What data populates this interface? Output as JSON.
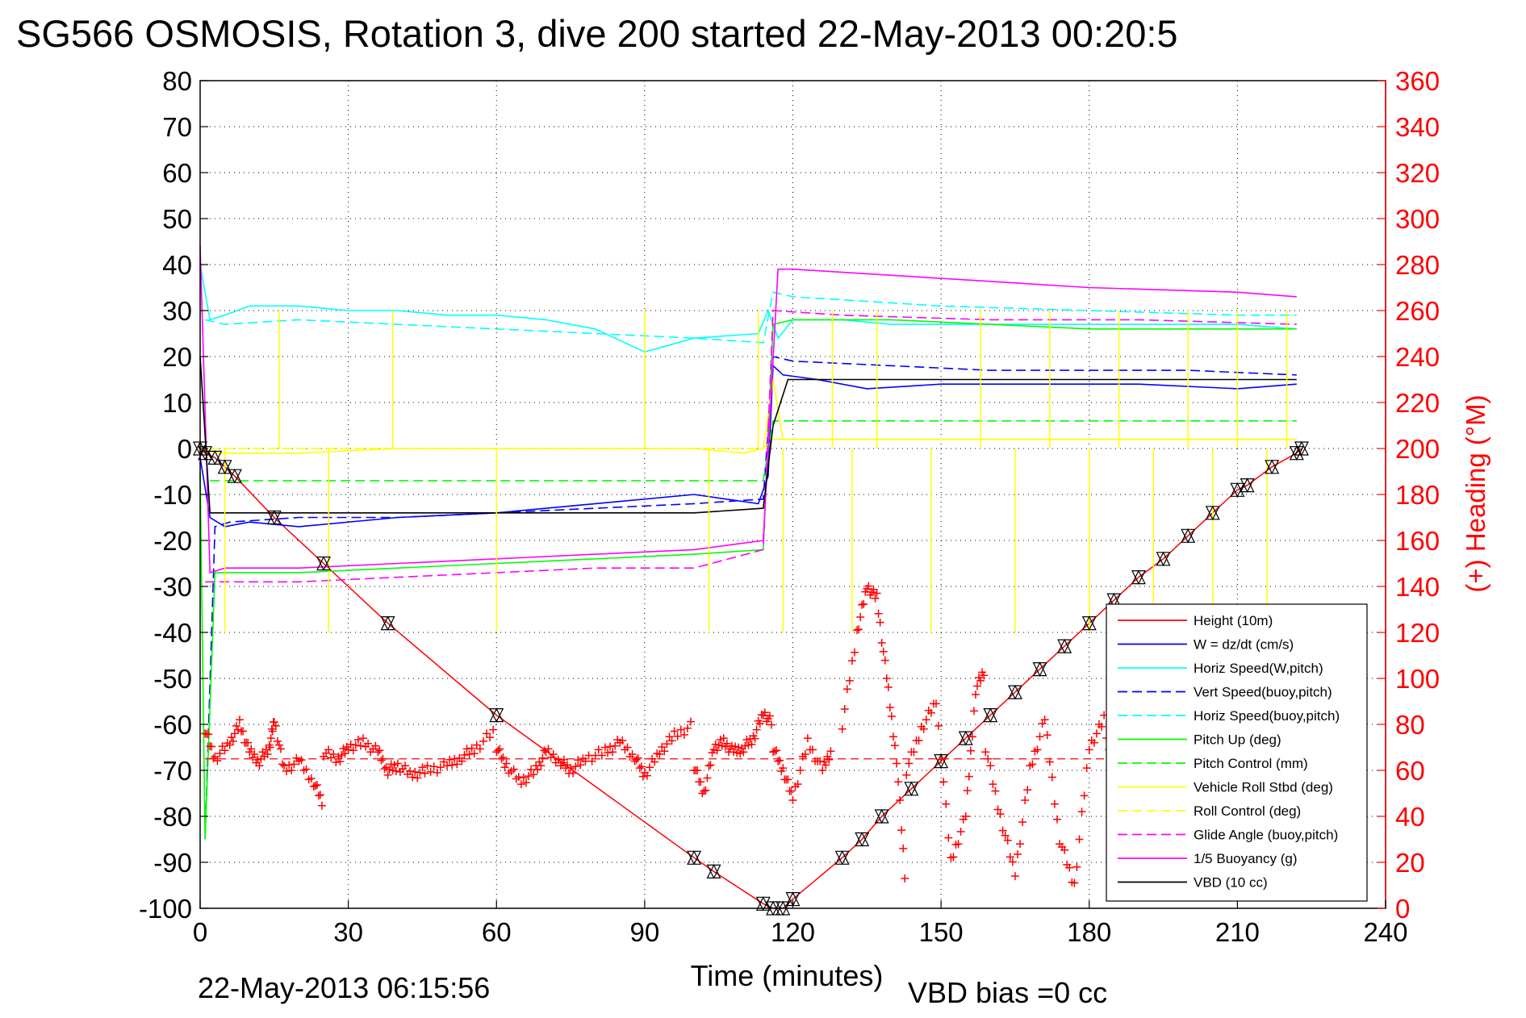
{
  "title": "SG566 OSMOSIS, Rotation 3, dive 200 started 22-May-2013 00:20:5",
  "footer_left": "22-May-2013 06:15:56",
  "footer_right": "VBD bias =0 cc",
  "chart_data": {
    "type": "line",
    "xlabel": "Time (minutes)",
    "ylabel_right": "(+) Heading (°M)",
    "xlim": [
      0,
      240
    ],
    "ylim_left": [
      -100,
      80
    ],
    "ylim_right": [
      0,
      360
    ],
    "grid": true,
    "legend_position": "bottom-right",
    "x_ticks": [
      0,
      30,
      60,
      90,
      120,
      150,
      180,
      210,
      240
    ],
    "y_ticks_left": [
      80,
      70,
      60,
      50,
      40,
      30,
      20,
      10,
      0,
      -10,
      -20,
      -30,
      -40,
      -50,
      -60,
      -70,
      -80,
      -90,
      -100
    ],
    "y_ticks_right": [
      360,
      340,
      320,
      300,
      280,
      260,
      240,
      220,
      200,
      180,
      160,
      140,
      120,
      100,
      80,
      60,
      40,
      20,
      0
    ],
    "colors": {
      "height": "#ff0000",
      "w": "#0000ff",
      "horiz_speed": "#00ffff",
      "vert_speed_model": "#0000ff",
      "horiz_speed_model": "#00ffff",
      "pitch": "#00ff00",
      "pitch_control": "#00ff00",
      "roll": "#ffff00",
      "roll_control": "#ffff00",
      "glide_angle": "#ff00ff",
      "buoyancy": "#ff00ff",
      "vbd": "#000000",
      "heading": "#ff0000",
      "right_axis": "#ff0000"
    },
    "legend": [
      {
        "label": "Height (10m)",
        "color": "#ff0000",
        "style": "solid"
      },
      {
        "label": "W = dz/dt (cm/s)",
        "color": "#0000ff",
        "style": "solid"
      },
      {
        "label": "Horiz Speed(W,pitch)",
        "color": "#00ffff",
        "style": "solid"
      },
      {
        "label": "Vert Speed(buoy,pitch)",
        "color": "#0000ff",
        "style": "dashed"
      },
      {
        "label": "Horiz Speed(buoy,pitch)",
        "color": "#00ffff",
        "style": "dashed"
      },
      {
        "label": "Pitch Up (deg)",
        "color": "#00ff00",
        "style": "solid"
      },
      {
        "label": "Pitch Control (mm)",
        "color": "#00ff00",
        "style": "dashed"
      },
      {
        "label": "Vehicle Roll Stbd (deg)",
        "color": "#ffff00",
        "style": "solid"
      },
      {
        "label": "Roll Control (deg)",
        "color": "#ffff00",
        "style": "dashed"
      },
      {
        "label": "Glide Angle (buoy,pitch)",
        "color": "#ff00ff",
        "style": "dashed"
      },
      {
        "label": "1/5 Buoyancy (g)",
        "color": "#ff00ff",
        "style": "solid"
      },
      {
        "label": "VBD (10 cc)",
        "color": "#000000",
        "style": "solid"
      }
    ],
    "series": [
      {
        "key": "height",
        "x": [
          0,
          1,
          3,
          5,
          7,
          15,
          25,
          38,
          60,
          100,
          104,
          114,
          116,
          118,
          120,
          130,
          134,
          138,
          144,
          150,
          155,
          160,
          165,
          170,
          175,
          180,
          185,
          190,
          195,
          200,
          205,
          210,
          212,
          217,
          222,
          223
        ],
        "y": [
          0,
          -1,
          -2,
          -4,
          -6,
          -15,
          -25,
          -38,
          -58,
          -89,
          -92,
          -99,
          -100,
          -100,
          -98,
          -89,
          -85,
          -80,
          -74,
          -68,
          -63,
          -58,
          -53,
          -48,
          -43,
          -38,
          -33,
          -28,
          -24,
          -19,
          -14,
          -9,
          -8,
          -4,
          -1,
          0
        ]
      },
      {
        "key": "w",
        "x": [
          0,
          2,
          5,
          10,
          20,
          40,
          60,
          80,
          100,
          113,
          115,
          116,
          118,
          125,
          135,
          150,
          170,
          190,
          210,
          222
        ],
        "y": [
          -2,
          -15,
          -17,
          -16,
          -17,
          -15,
          -14,
          -12,
          -10,
          -12,
          -6,
          18,
          16,
          15,
          13,
          14,
          14,
          14,
          13,
          14
        ]
      },
      {
        "key": "horiz_speed",
        "x": [
          0,
          2,
          5,
          10,
          20,
          30,
          40,
          50,
          60,
          70,
          80,
          90,
          100,
          113,
          115,
          117,
          120,
          130,
          140,
          150,
          170,
          190,
          210,
          222
        ],
        "y": [
          40,
          28,
          29,
          31,
          31,
          30,
          30,
          29,
          29,
          28,
          26,
          21,
          24,
          25,
          30,
          24,
          28,
          28,
          27,
          27,
          27,
          27,
          27,
          26
        ]
      },
      {
        "key": "vert_speed_model",
        "x": [
          1,
          3,
          6,
          20,
          40,
          60,
          80,
          100,
          114,
          116,
          120,
          140,
          160,
          180,
          200,
          222
        ],
        "y": [
          -85,
          -17,
          -16,
          -15,
          -15,
          -14,
          -13,
          -12,
          -11,
          20,
          19,
          18,
          17,
          17,
          17,
          16
        ]
      },
      {
        "key": "horiz_speed_model",
        "x": [
          1,
          5,
          20,
          40,
          60,
          80,
          100,
          114,
          116,
          120,
          150,
          180,
          210,
          222
        ],
        "y": [
          28,
          27,
          28,
          27,
          26,
          25,
          24,
          23,
          34,
          33,
          31,
          30,
          29,
          29
        ]
      },
      {
        "key": "pitch",
        "x": [
          0,
          1,
          3,
          6,
          20,
          40,
          60,
          80,
          100,
          114,
          116,
          120,
          140,
          160,
          180,
          200,
          222
        ],
        "y": [
          -5,
          -85,
          -27,
          -27,
          -27,
          -26,
          -25,
          -24,
          -23,
          -22,
          27,
          28,
          28,
          27,
          26,
          26,
          26
        ]
      },
      {
        "key": "pitch_control",
        "x": [
          2,
          20,
          40,
          60,
          80,
          100,
          114,
          116,
          130,
          160,
          190,
          222
        ],
        "y": [
          -7,
          -7,
          -7,
          -7,
          -7,
          -7,
          -7,
          6,
          6,
          6,
          6,
          6
        ]
      },
      {
        "key": "roll",
        "x": [
          0,
          4,
          10,
          20,
          40,
          60,
          80,
          100,
          110,
          114,
          116,
          118,
          130,
          150,
          170,
          190,
          210,
          222
        ],
        "y": [
          0,
          -1,
          -1,
          -1,
          0,
          0,
          0,
          0,
          -1,
          0,
          15,
          2,
          2,
          2,
          2,
          2,
          2,
          2
        ]
      },
      {
        "key": "roll_control",
        "x": [
          2,
          114,
          116,
          222
        ],
        "y": [
          0,
          0,
          2,
          2
        ]
      },
      {
        "key": "glide_angle",
        "x": [
          1,
          5,
          20,
          40,
          60,
          80,
          100,
          114,
          116,
          130,
          160,
          190,
          222
        ],
        "y": [
          -29,
          -29,
          -29,
          -28,
          -27,
          -26,
          -26,
          -22,
          30,
          29,
          28,
          28,
          27
        ]
      },
      {
        "key": "buoyancy",
        "x": [
          0,
          2,
          5,
          20,
          40,
          60,
          80,
          100,
          114,
          117,
          120,
          150,
          180,
          210,
          222
        ],
        "y": [
          44,
          -27,
          -26,
          -26,
          -25,
          -24,
          -23,
          -22,
          -20,
          39,
          39,
          37,
          35,
          34,
          33
        ]
      },
      {
        "key": "vbd",
        "x": [
          0,
          2,
          5,
          10,
          20,
          40,
          60,
          80,
          100,
          114,
          116,
          119,
          130,
          160,
          190,
          222
        ],
        "y": [
          20,
          -14,
          -14,
          -14,
          -14,
          -14,
          -14,
          -14,
          -14,
          -13,
          5,
          15,
          15,
          15,
          15,
          15
        ]
      }
    ],
    "heading_reference": 65,
    "heading_segments": [
      {
        "x": [
          1,
          3,
          6,
          8,
          10,
          12,
          14,
          15,
          17,
          20,
          23,
          25
        ],
        "y": [
          78,
          65,
          72,
          80,
          68,
          64,
          70,
          82,
          60,
          64,
          55,
          45
        ]
      },
      {
        "x": [
          25,
          28,
          30,
          33,
          36,
          38,
          40,
          43,
          46,
          50,
          53,
          56,
          60
        ],
        "y": [
          68,
          65,
          70,
          72,
          68,
          60,
          62,
          58,
          60,
          62,
          66,
          70,
          78
        ]
      },
      {
        "x": [
          60,
          62,
          65,
          68,
          70,
          73,
          75,
          78,
          82,
          85,
          88,
          90,
          93,
          96,
          100
        ],
        "y": [
          70,
          62,
          55,
          60,
          68,
          64,
          60,
          65,
          68,
          72,
          66,
          58,
          68,
          75,
          80
        ]
      },
      {
        "x": [
          100,
          102,
          104,
          106,
          108,
          110,
          112,
          114,
          116
        ],
        "y": [
          62,
          50,
          70,
          72,
          68,
          70,
          74,
          85,
          80
        ]
      },
      {
        "x": [
          116,
          118,
          120,
          123,
          126,
          128
        ],
        "y": [
          70,
          60,
          48,
          72,
          60,
          70
        ]
      },
      {
        "x": [
          130,
          133,
          135,
          137,
          139,
          141,
          143
        ],
        "y": [
          80,
          120,
          140,
          135,
          100,
          65,
          5
        ]
      },
      {
        "x": [
          143,
          146,
          149,
          152,
          155,
          157,
          159
        ],
        "y": [
          60,
          78,
          90,
          20,
          40,
          95,
          105
        ]
      },
      {
        "x": [
          159,
          162,
          165,
          168,
          171,
          174,
          177,
          180,
          183,
          186
        ],
        "y": [
          70,
          40,
          15,
          60,
          82,
          30,
          10,
          70,
          82,
          40
        ]
      }
    ]
  }
}
